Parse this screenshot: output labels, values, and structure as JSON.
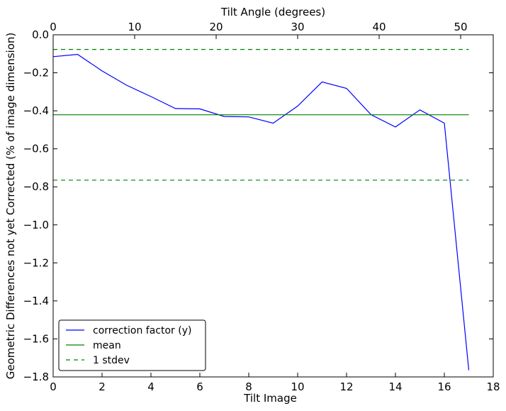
{
  "chart_data": {
    "type": "line",
    "xlabel": "Tilt Image",
    "ylabel": "Geometric Differences not yet Corrected (% of image dimension)",
    "top_xlabel": "Tilt Angle (degrees)",
    "xlim": [
      0,
      18
    ],
    "ylim": [
      -1.8,
      0.0
    ],
    "xticks": [
      0,
      2,
      4,
      6,
      8,
      10,
      12,
      14,
      16,
      18
    ],
    "xtick_labels": [
      "0",
      "2",
      "4",
      "6",
      "8",
      "10",
      "12",
      "14",
      "16",
      "18"
    ],
    "yticks": [
      0.0,
      -0.2,
      -0.4,
      -0.6,
      -0.8,
      -1.0,
      -1.2,
      -1.4,
      -1.6,
      -1.8
    ],
    "ytick_labels": [
      "0.0",
      "−0.2",
      "−0.4",
      "−0.6",
      "−0.8",
      "−1.0",
      "−1.2",
      "−1.4",
      "−1.6",
      "−1.8"
    ],
    "top_xlim": [
      0,
      54
    ],
    "top_xticks": [
      0,
      10,
      20,
      30,
      40,
      50
    ],
    "top_xtick_labels": [
      "0",
      "10",
      "20",
      "30",
      "40",
      "50"
    ],
    "legend_placement": "lower-left",
    "grid": false,
    "series": [
      {
        "name": "correction factor (y)",
        "color": "#0000ff",
        "style": "solid",
        "x": [
          0,
          1,
          2,
          3,
          4,
          5,
          6,
          7,
          8,
          9,
          10,
          11,
          12,
          13,
          14,
          15,
          16,
          17
        ],
        "values": [
          -0.115,
          -0.103,
          -0.19,
          -0.265,
          -0.325,
          -0.388,
          -0.39,
          -0.43,
          -0.432,
          -0.465,
          -0.375,
          -0.248,
          -0.282,
          -0.42,
          -0.485,
          -0.395,
          -0.465,
          -1.765
        ]
      },
      {
        "name": "mean",
        "color": "#008000",
        "style": "solid",
        "x": [
          0,
          17
        ],
        "values": [
          -0.421,
          -0.421
        ]
      },
      {
        "name": "1 stdev",
        "color": "#008000",
        "style": "dashed",
        "x": [
          0,
          17
        ],
        "values": [
          -0.077,
          -0.077
        ]
      },
      {
        "name": "",
        "color": "#008000",
        "style": "dashed",
        "x": [
          0,
          17
        ],
        "values": [
          -0.765,
          -0.765
        ]
      }
    ]
  }
}
